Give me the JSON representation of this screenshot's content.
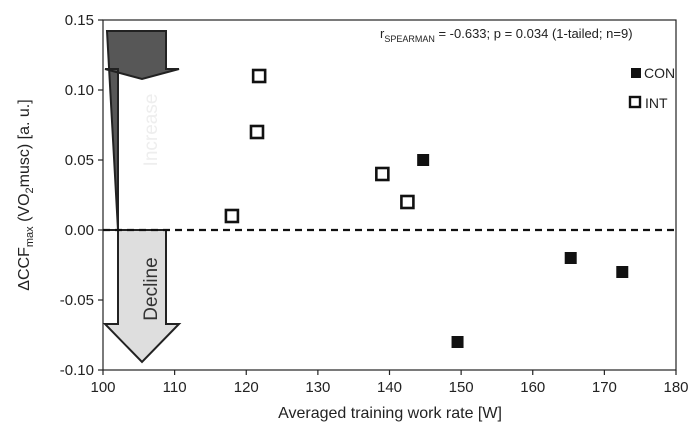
{
  "chart_data": {
    "type": "scatter",
    "x_label": "Averaged training work rate [W]",
    "y_label": {
      "delta": "ΔCCF",
      "sub1": "max",
      "mid": " (VO",
      "sub2": "2",
      "end": "musc) [a. u.]"
    },
    "xlim": [
      100,
      180
    ],
    "ylim": [
      -0.1,
      0.15
    ],
    "x_ticks": [
      "100",
      "110",
      "120",
      "130",
      "140",
      "150",
      "160",
      "170",
      "180"
    ],
    "y_ticks": [
      "-0.10",
      "-0.05",
      "0.00",
      "0.05",
      "0.10",
      "0.15"
    ],
    "reference_line_y": 0,
    "annotation": {
      "r": "r",
      "r_sub": "SPEARMAN",
      "rest": " = -0.633; p = 0.034 (1-tailed; n=9)"
    },
    "arrow_labels": {
      "increase": "Increase",
      "decline": "Decline"
    },
    "legend_position": "top-right",
    "series": [
      {
        "name": "CON",
        "marker": "filled-square",
        "color": "#111111",
        "points": [
          {
            "x": 144.7,
            "y": 0.05
          },
          {
            "x": 149.5,
            "y": -0.08
          },
          {
            "x": 165.3,
            "y": -0.02
          },
          {
            "x": 172.5,
            "y": -0.03
          }
        ]
      },
      {
        "name": "INT",
        "marker": "open-square",
        "color": "#111111",
        "points": [
          {
            "x": 118.0,
            "y": 0.01
          },
          {
            "x": 121.5,
            "y": 0.07
          },
          {
            "x": 121.8,
            "y": 0.11
          },
          {
            "x": 139.0,
            "y": 0.04
          },
          {
            "x": 142.5,
            "y": 0.02
          }
        ]
      }
    ]
  },
  "colors": {
    "increase_arrow": "#575757",
    "decline_arrow": "#dedede",
    "increase_text": "#eeeeee",
    "decline_text": "#333333"
  }
}
